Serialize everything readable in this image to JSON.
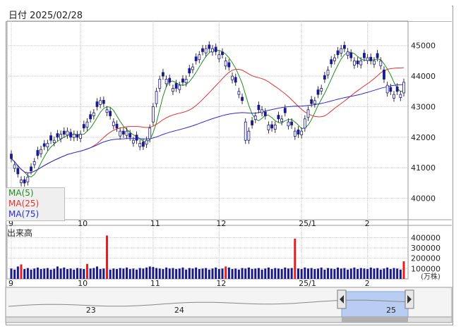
{
  "header": {
    "date_label": "日付 2025/02/28"
  },
  "legend": {
    "ma5": {
      "label": "MA(5)",
      "color": "#228b22"
    },
    "ma25": {
      "label": "MA(25)",
      "color": "#e03030"
    },
    "ma75": {
      "label": "MA(75)",
      "color": "#2a2ad8"
    }
  },
  "volume_panel": {
    "title": "出来高",
    "unit": "(万株)"
  },
  "colors": {
    "candle": "#1a1a8c",
    "volume": "#1a1a8c",
    "volume_spike": "#e02020",
    "grid": "#c8c8c8"
  },
  "chart_data": {
    "type": "candlestick",
    "price_axis": {
      "ticks": [
        40000,
        41000,
        42000,
        43000,
        44000,
        45000
      ],
      "labels": [
        "40000",
        "41000",
        "42000",
        "43000",
        "44000",
        "45000"
      ],
      "ylim": [
        39300,
        45800
      ]
    },
    "volume_axis": {
      "ticks": [
        100000,
        200000,
        300000,
        400000
      ],
      "labels": [
        "100000",
        "200000",
        "300000",
        "400000"
      ],
      "ylim": [
        0,
        450000
      ]
    },
    "month_labels": [
      {
        "label": "9",
        "index": 0
      },
      {
        "label": "10",
        "index": 21
      },
      {
        "label": "11",
        "index": 43
      },
      {
        "label": "12",
        "index": 63
      },
      {
        "label": "25/1",
        "index": 88
      },
      {
        "label": "2",
        "index": 108
      }
    ],
    "navigator_labels": [
      {
        "label": "23",
        "frac": 0.3
      },
      {
        "label": "24",
        "frac": 0.63
      },
      {
        "label": "25",
        "frac": 0.96
      }
    ],
    "close": [
      41300,
      41100,
      40800,
      40600,
      40500,
      40700,
      40900,
      41200,
      41400,
      41600,
      41700,
      41800,
      41900,
      41900,
      42000,
      42100,
      42100,
      42200,
      42000,
      42100,
      42000,
      42100,
      42300,
      42500,
      42600,
      42800,
      43000,
      43200,
      43100,
      42900,
      42700,
      42500,
      42300,
      42200,
      42100,
      42200,
      42000,
      41900,
      41900,
      41800,
      41700,
      41900,
      42300,
      43000,
      43500,
      43900,
      44000,
      43900,
      43800,
      43600,
      43600,
      43700,
      43800,
      43900,
      44100,
      44300,
      44500,
      44700,
      44800,
      44900,
      44900,
      44900,
      44800,
      44700,
      44700,
      44500,
      44300,
      44000,
      43800,
      43500,
      43200,
      42500,
      42200,
      42400,
      42700,
      42900,
      42900,
      42700,
      42400,
      42300,
      42400,
      42600,
      42600,
      42800,
      42500,
      42400,
      42200,
      42100,
      42200,
      42600,
      42900,
      43100,
      43200,
      43400,
      43600,
      43900,
      44200,
      44400,
      44600,
      44700,
      44900,
      44900,
      44800,
      44600,
      44500,
      44400,
      44500,
      44600,
      44600,
      44500,
      44500,
      44600,
      44500,
      43900,
      43700,
      43500,
      43400,
      43500,
      43400,
      43800
    ],
    "open_offset": [
      150,
      -120,
      180,
      -90,
      110,
      -160,
      130,
      -100,
      170,
      -140,
      90,
      -120,
      150,
      -80,
      120,
      -150,
      100,
      -130,
      160,
      -110,
      90,
      -140,
      120,
      -170,
      140,
      -100,
      160,
      -130,
      110,
      -90,
      150,
      -120,
      130,
      -160,
      100,
      -140,
      120,
      -90,
      170,
      -110,
      140,
      -130,
      -350,
      -500,
      -400,
      -300,
      120,
      -150,
      130,
      -100,
      160,
      -140,
      110,
      -120,
      150,
      -90,
      130,
      -160,
      100,
      -140,
      120,
      -110,
      150,
      -130,
      90,
      -170,
      140,
      -120,
      160,
      -100,
      110,
      -600,
      -300,
      140,
      -120,
      150,
      -100,
      130,
      -160,
      110,
      -140,
      120,
      -90,
      150,
      -130,
      100,
      -170,
      140,
      -120,
      -300,
      -250,
      130,
      -110,
      150,
      -90,
      120,
      -160,
      140,
      -100,
      130,
      -150,
      110,
      -120,
      160,
      -140,
      100,
      -130,
      150,
      -90,
      120,
      -110,
      140,
      -160,
      300,
      -250,
      130,
      -120,
      150,
      -100,
      -350
    ],
    "volume": [
      100000,
      90000,
      120000,
      110000,
      95000,
      105000,
      90000,
      100000,
      110000,
      95000,
      100000,
      105000,
      90000,
      98000,
      120000,
      100000,
      110000,
      95000,
      100000,
      90000,
      105000,
      100000,
      95000,
      110000,
      100000,
      105000,
      120000,
      95000,
      100000,
      110000,
      90000,
      100000,
      95000,
      105000,
      100000,
      110000,
      95000,
      100000,
      90000,
      105000,
      100000,
      110000,
      120000,
      115000,
      105000,
      100000,
      95000,
      110000,
      100000,
      105000,
      95000,
      100000,
      110000,
      90000,
      105000,
      100000,
      110000,
      95000,
      100000,
      105000,
      90000,
      100000,
      110000,
      95000,
      100000,
      105000,
      110000,
      95000,
      100000,
      90000,
      105000,
      100000,
      110000,
      95000,
      100000,
      105000,
      90000,
      100000,
      110000,
      95000,
      105000,
      100000,
      95000,
      110000,
      100000,
      105000,
      90000,
      100000,
      95000,
      110000,
      100000,
      105000,
      95000,
      100000,
      110000,
      90000,
      105000,
      100000,
      95000,
      110000,
      100000,
      105000,
      90000,
      100000,
      110000,
      95000,
      105000,
      100000,
      95000,
      110000,
      100000,
      105000,
      90000,
      100000,
      110000,
      95000,
      105000,
      100000,
      90000,
      110000
    ],
    "volume_spikes": [
      {
        "index": 3,
        "value": 140000
      },
      {
        "index": 23,
        "value": 145000
      },
      {
        "index": 29,
        "value": 420000
      },
      {
        "index": 65,
        "value": 120000
      },
      {
        "index": 86,
        "value": 390000
      },
      {
        "index": 119,
        "value": 170000
      }
    ],
    "series": [
      {
        "name": "MA(5)",
        "color": "#228b22"
      },
      {
        "name": "MA(25)",
        "color": "#e03030"
      },
      {
        "name": "MA(75)",
        "color": "#2a2ad8"
      }
    ]
  }
}
